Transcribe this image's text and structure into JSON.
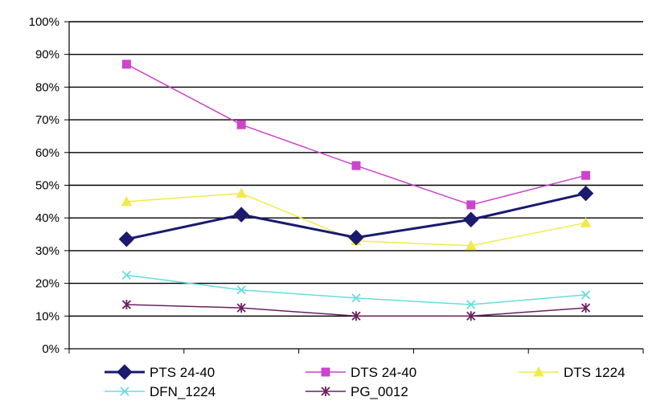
{
  "chart_data": {
    "type": "line",
    "title": "",
    "xlabel": "",
    "ylabel": "",
    "categories": [
      "",
      "",
      "",
      "",
      ""
    ],
    "ylim": [
      0,
      100
    ],
    "y_ticks": [
      "0%",
      "10%",
      "20%",
      "30%",
      "40%",
      "50%",
      "60%",
      "70%",
      "80%",
      "90%",
      "100%"
    ],
    "grid": "horizontal",
    "legend_position": "bottom",
    "series": [
      {
        "name": "PTS 24-40",
        "values": [
          33.5,
          41,
          34,
          39.5,
          47.5
        ],
        "color": "#1a1a6e",
        "marker": "diamond",
        "line_width": 3
      },
      {
        "name": "DTS 24-40",
        "values": [
          87,
          68.5,
          56,
          44,
          53
        ],
        "color": "#cc44cc",
        "marker": "square",
        "line_width": 1.5
      },
      {
        "name": "DTS 1224",
        "values": [
          45,
          47.5,
          33,
          31.5,
          38.5
        ],
        "color": "#f2ea4a",
        "marker": "triangle",
        "line_width": 1.5
      },
      {
        "name": "DFN_1224",
        "values": [
          22.5,
          18,
          15.5,
          13.5,
          16.5
        ],
        "color": "#66dddd",
        "marker": "x",
        "line_width": 1.5
      },
      {
        "name": "PG_0012",
        "values": [
          13.5,
          12.5,
          10,
          10,
          12.5
        ],
        "color": "#6b2160",
        "marker": "star",
        "line_width": 1.5
      }
    ]
  }
}
